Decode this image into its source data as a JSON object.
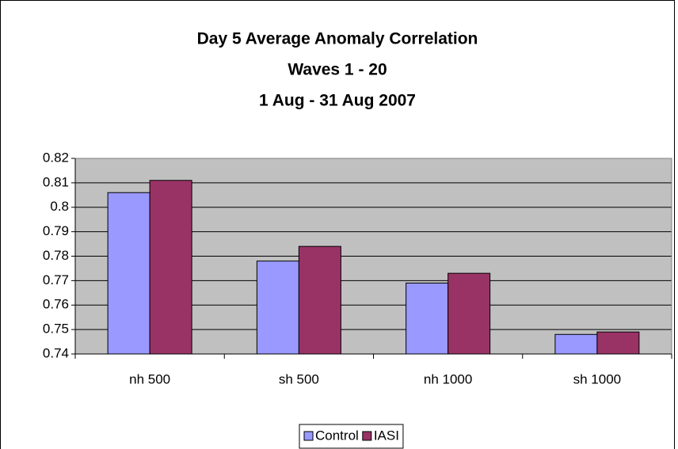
{
  "chart_data": {
    "type": "bar",
    "title": [
      "Day 5 Average Anomaly Correlation",
      "Waves 1 - 20",
      "1 Aug - 31 Aug 2007"
    ],
    "categories": [
      "nh 500",
      "sh 500",
      "nh 1000",
      "sh 1000"
    ],
    "series": [
      {
        "name": "Control",
        "color": "#9999ff",
        "values": [
          0.806,
          0.778,
          0.769,
          0.748
        ]
      },
      {
        "name": "IASI",
        "color": "#993366",
        "values": [
          0.811,
          0.784,
          0.773,
          0.749
        ]
      }
    ],
    "ylim": [
      0.74,
      0.82
    ],
    "yticks": [
      0.74,
      0.75,
      0.76,
      0.77,
      0.78,
      0.79,
      0.8,
      0.81,
      0.82
    ],
    "grid": true,
    "plot_background": "#c0c0c0",
    "legend": "bottom"
  }
}
